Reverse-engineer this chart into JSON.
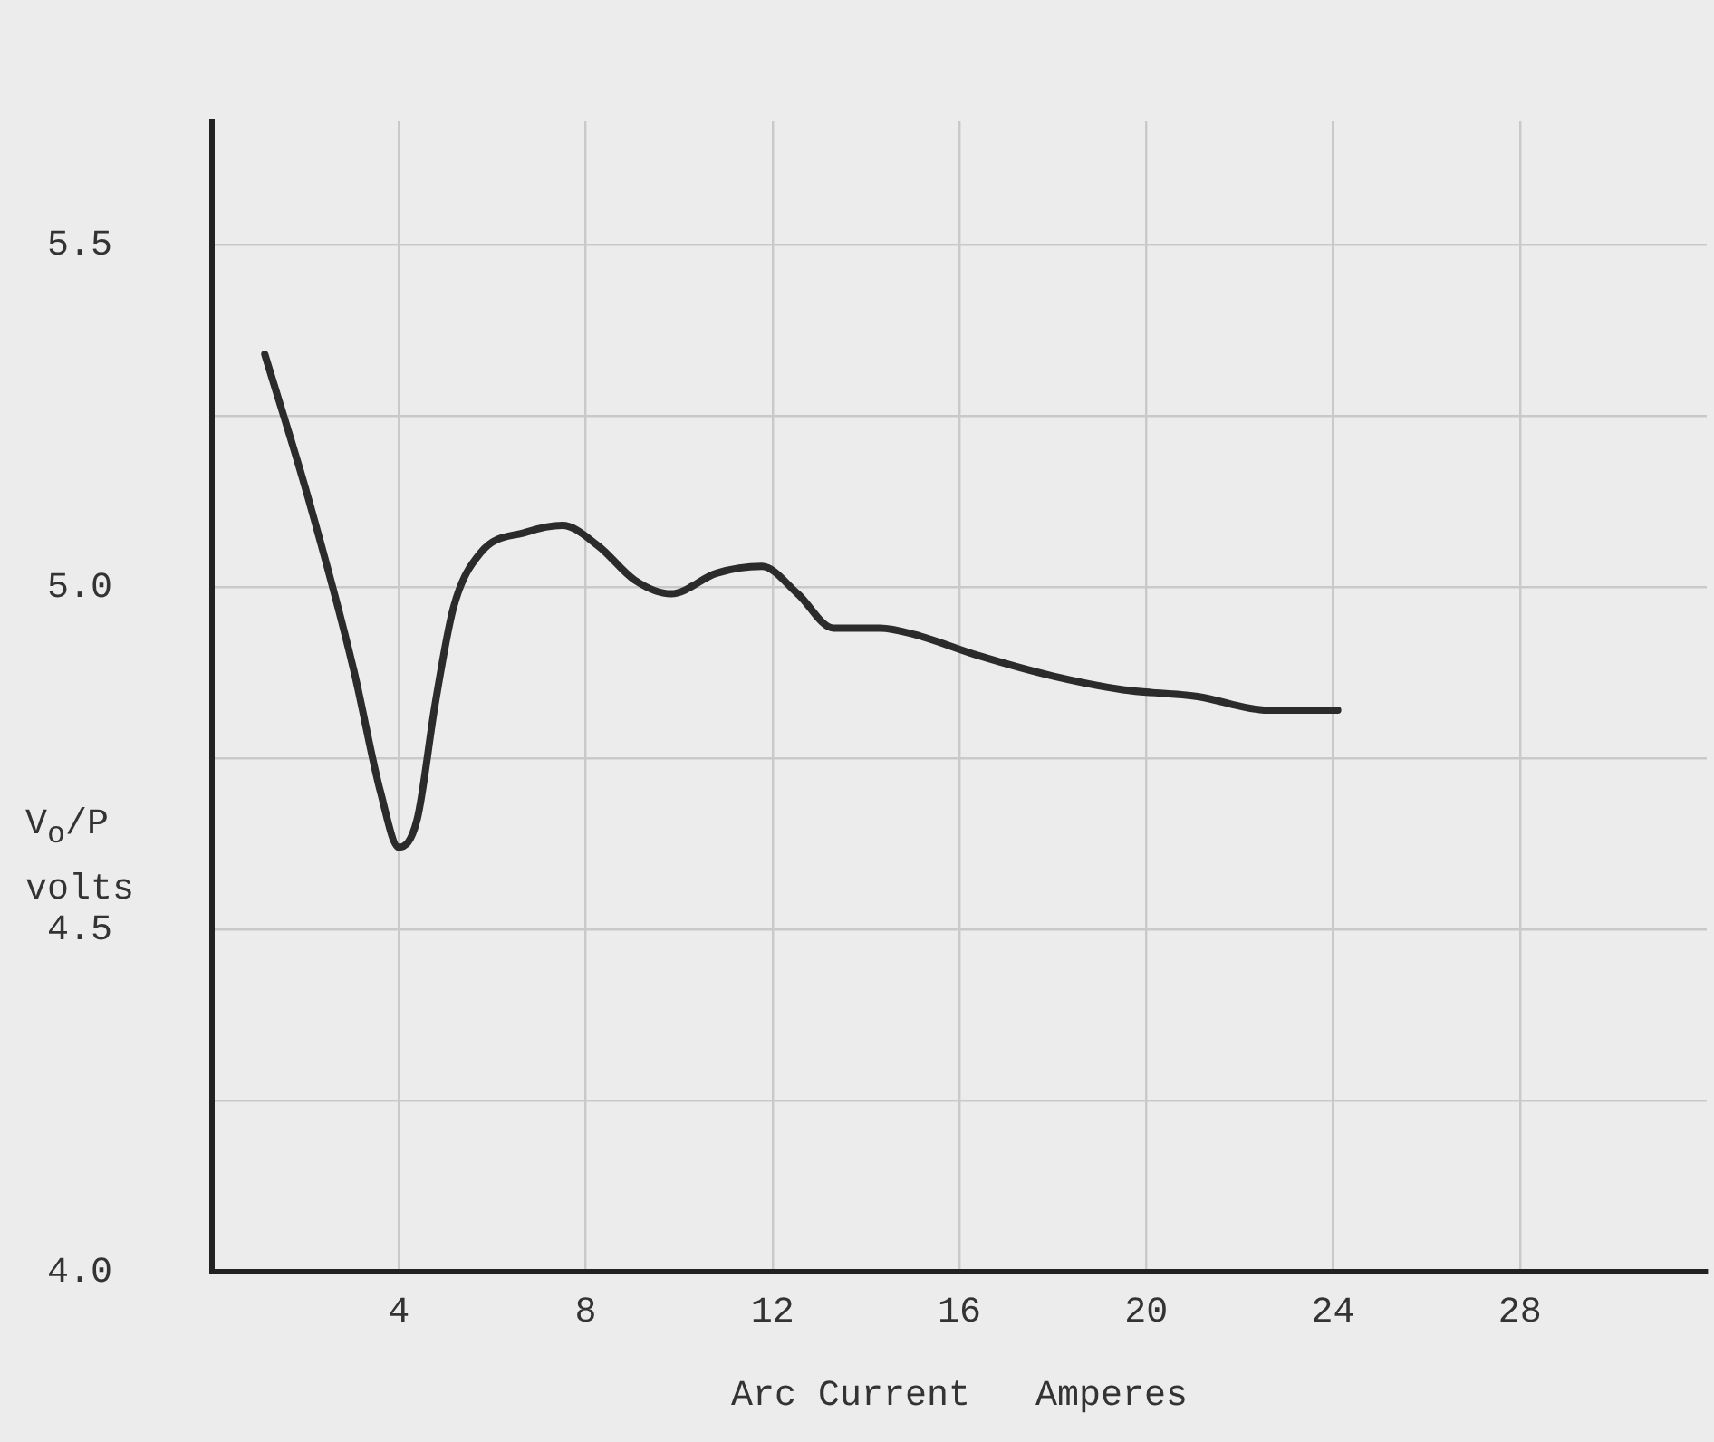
{
  "chart_data": {
    "type": "line",
    "xlabel": "Arc Current   Amperes",
    "ylabel": "V$_{o}$/P volts",
    "x": [
      1.13,
      2.06,
      3.03,
      3.61,
      4.0,
      4.39,
      4.78,
      5.17,
      5.75,
      6.72,
      7.5,
      8.27,
      9.05,
      9.83,
      10.8,
      11.77,
      12.54,
      13.3,
      14.3,
      15.07,
      16.4,
      18.0,
      19.5,
      21.1,
      22.6,
      24.1
    ],
    "values": [
      5.34,
      5.13,
      4.88,
      4.7,
      4.62,
      4.66,
      4.83,
      4.97,
      5.05,
      5.08,
      5.09,
      5.06,
      5.01,
      4.99,
      5.02,
      5.03,
      4.99,
      4.94,
      4.94,
      4.93,
      4.9,
      4.87,
      4.85,
      4.84,
      4.82,
      4.82
    ],
    "color": "#2b2b2b",
    "xlim": [
      0,
      32
    ],
    "ylim": [
      4.0,
      5.68
    ],
    "xticks": [
      4,
      8,
      12,
      16,
      20,
      24,
      28
    ],
    "yticks": [
      {
        "value": 4.0,
        "label": "4.0"
      },
      {
        "value": 4.25,
        "label": null
      },
      4.5,
      {
        "value": 4.75,
        "label": null
      },
      {
        "value": 5.0,
        "label": "5.0"
      },
      {
        "value": 5.25,
        "label": null
      },
      5.5
    ],
    "grid": true,
    "marker": "none",
    "line_style": "solid"
  }
}
